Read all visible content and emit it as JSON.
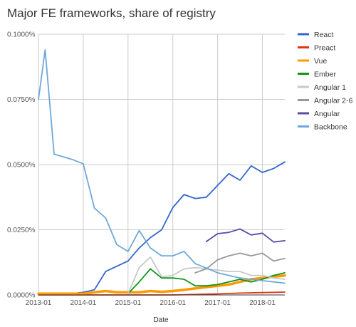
{
  "chart_data": {
    "type": "line",
    "title": "Major FE frameworks, share of registry",
    "xlabel": "Date",
    "ylabel": "",
    "x_ticks": [
      "2013-01",
      "2014-01",
      "2015-01",
      "2016-01",
      "2017-01",
      "2018-01"
    ],
    "y_ticks": [
      "0.0000%",
      "0.0250%",
      "0.0500%",
      "0.0750%",
      "0.1000%"
    ],
    "ylim": [
      0,
      0.1
    ],
    "xlim": [
      2013.0,
      2018.5
    ],
    "grid": true,
    "legend_position": "right",
    "series": [
      {
        "name": "React",
        "color": "#3366cc",
        "x": [
          2013.0,
          2013.25,
          2013.5,
          2013.75,
          2014.0,
          2014.25,
          2014.5,
          2014.75,
          2015.0,
          2015.25,
          2015.5,
          2015.75,
          2016.0,
          2016.25,
          2016.5,
          2016.75,
          2017.0,
          2017.25,
          2017.5,
          2017.75,
          2018.0,
          2018.25,
          2018.5
        ],
        "y": [
          0.0005,
          0.0005,
          0.0005,
          0.0005,
          0.001,
          0.002,
          0.009,
          0.011,
          0.013,
          0.018,
          0.022,
          0.025,
          0.0335,
          0.0385,
          0.037,
          0.0375,
          0.042,
          0.0465,
          0.044,
          0.0495,
          0.047,
          0.0485,
          0.051
        ]
      },
      {
        "name": "Preact",
        "color": "#dc3912",
        "x": [
          2013.0,
          2014.0,
          2015.0,
          2016.0,
          2016.5,
          2017.0,
          2017.5,
          2018.0,
          2018.5
        ],
        "y": [
          0.0,
          0.0,
          0.0,
          0.0,
          0.0002,
          0.0004,
          0.0007,
          0.0009,
          0.0011
        ]
      },
      {
        "name": "Vue",
        "color": "#ff9900",
        "x": [
          2013.0,
          2013.5,
          2014.0,
          2014.25,
          2014.5,
          2014.75,
          2015.0,
          2015.25,
          2015.5,
          2015.75,
          2016.0,
          2016.25,
          2016.5,
          2016.75,
          2017.0,
          2017.25,
          2017.5,
          2017.75,
          2018.0,
          2018.25,
          2018.5
        ],
        "y": [
          0.0005,
          0.0005,
          0.0005,
          0.001,
          0.0015,
          0.001,
          0.001,
          0.001,
          0.0015,
          0.0012,
          0.0015,
          0.002,
          0.0025,
          0.003,
          0.0035,
          0.004,
          0.005,
          0.006,
          0.0065,
          0.007,
          0.0075
        ]
      },
      {
        "name": "Ember",
        "color": "#109618",
        "x": [
          2015.0,
          2015.25,
          2015.5,
          2015.75,
          2016.0,
          2016.25,
          2016.5,
          2016.75,
          2017.0,
          2017.25,
          2017.5,
          2017.75,
          2018.0,
          2018.25,
          2018.5
        ],
        "y": [
          0.0005,
          0.005,
          0.01,
          0.0065,
          0.0065,
          0.006,
          0.0035,
          0.0035,
          0.004,
          0.005,
          0.006,
          0.005,
          0.006,
          0.0075,
          0.0085
        ]
      },
      {
        "name": "Angular 1",
        "color": "#c8c8c8",
        "x": [
          2015.0,
          2015.25,
          2015.5,
          2015.75,
          2016.0,
          2016.25,
          2016.5,
          2016.75,
          2017.0,
          2017.25,
          2017.5,
          2017.75,
          2018.0,
          2018.25,
          2018.5
        ],
        "y": [
          0.0005,
          0.0105,
          0.0145,
          0.007,
          0.0075,
          0.01,
          0.0105,
          0.01,
          0.0095,
          0.009,
          0.009,
          0.0075,
          0.0075,
          0.0065,
          0.006
        ]
      },
      {
        "name": "Angular 2-6",
        "color": "#999999",
        "x": [
          2016.5,
          2016.75,
          2017.0,
          2017.25,
          2017.5,
          2017.75,
          2018.0,
          2018.25,
          2018.5
        ],
        "y": [
          0.0085,
          0.01,
          0.0135,
          0.015,
          0.016,
          0.015,
          0.016,
          0.013,
          0.014
        ]
      },
      {
        "name": "Angular",
        "color": "#5c4aa8",
        "x": [
          2016.75,
          2017.0,
          2017.25,
          2017.5,
          2017.75,
          2018.0,
          2018.25,
          2018.5
        ],
        "y": [
          0.0205,
          0.0235,
          0.024,
          0.0253,
          0.023,
          0.0237,
          0.0203,
          0.0208
        ]
      },
      {
        "name": "Backbone",
        "color": "#6fa8dc",
        "x": [
          2013.0,
          2013.15,
          2013.35,
          2013.75,
          2014.0,
          2014.25,
          2014.5,
          2014.75,
          2015.0,
          2015.25,
          2015.5,
          2015.75,
          2016.0,
          2016.25,
          2016.5,
          2016.75,
          2017.0,
          2017.25,
          2017.5,
          2017.75,
          2018.0,
          2018.25,
          2018.5
        ],
        "y": [
          0.075,
          0.094,
          0.054,
          0.052,
          0.0503,
          0.0333,
          0.0295,
          0.0193,
          0.0167,
          0.0247,
          0.018,
          0.015,
          0.015,
          0.0167,
          0.012,
          0.0103,
          0.0085,
          0.0075,
          0.0065,
          0.006,
          0.0055,
          0.005,
          0.0045
        ]
      }
    ]
  }
}
